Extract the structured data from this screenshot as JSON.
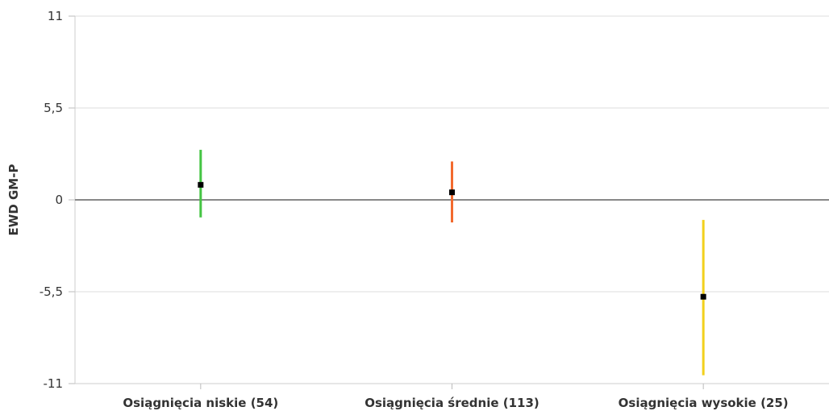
{
  "chart_data": {
    "type": "errorbar",
    "title": "",
    "xlabel": "",
    "ylabel": "EWD GM-P",
    "ylim": [
      -11,
      11
    ],
    "yticks": [
      11,
      5.5,
      0,
      -5.5,
      -11
    ],
    "ytick_labels": [
      "11",
      "5,5",
      "0",
      "-5,5",
      "-11"
    ],
    "grid": true,
    "legend": "none",
    "categories": [
      "Osiągnięcia niskie (54)",
      "Osiągnięcia średnie (113)",
      "Osiągnięcia wysokie (25)"
    ],
    "values": [
      0.9,
      0.45,
      -5.8
    ],
    "lower": [
      -1.05,
      -1.35,
      -10.5
    ],
    "upper": [
      3.0,
      2.3,
      -1.2
    ],
    "colors": [
      "#44c443",
      "#f26a2e",
      "#f2d01c"
    ],
    "zero_line_color": "#888888",
    "point_color": "#000000"
  }
}
